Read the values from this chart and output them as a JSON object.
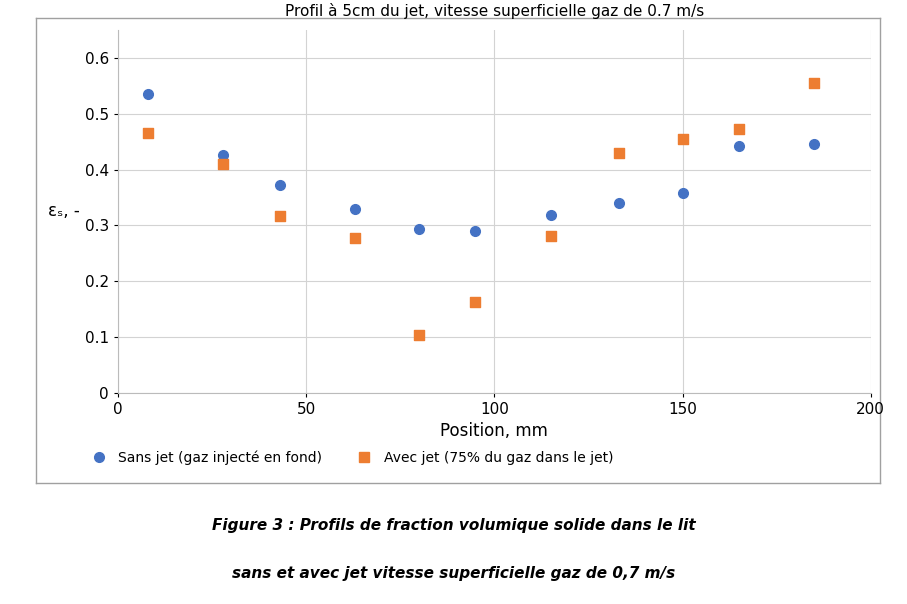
{
  "title": "Profil à 5cm du jet, vitesse superficielle gaz de 0.7 m/s",
  "xlabel": "Position, mm",
  "ylabel": "εₛ, -",
  "xlim": [
    0,
    200
  ],
  "ylim": [
    0,
    0.65
  ],
  "yticks": [
    0,
    0.1,
    0.2,
    0.3,
    0.4,
    0.5,
    0.6
  ],
  "xticks": [
    0,
    50,
    100,
    150,
    200
  ],
  "blue_x": [
    8,
    28,
    43,
    63,
    80,
    95,
    115,
    133,
    150,
    165,
    185
  ],
  "blue_y": [
    0.535,
    0.427,
    0.372,
    0.33,
    0.293,
    0.29,
    0.318,
    0.34,
    0.358,
    0.443,
    0.445
  ],
  "orange_x": [
    8,
    28,
    43,
    63,
    80,
    95,
    115,
    133,
    150,
    165,
    185
  ],
  "orange_y": [
    0.465,
    0.41,
    0.316,
    0.278,
    0.103,
    0.162,
    0.281,
    0.43,
    0.455,
    0.472,
    0.555
  ],
  "blue_color": "#4472c4",
  "orange_color": "#ed7d31",
  "legend_blue": "Sans jet (gaz injecté en fond)",
  "legend_orange": "Avec jet (75% du gaz dans le jet)",
  "caption_line1": "Figure 3 : Profils de fraction volumique solide dans le lit",
  "caption_line2": "sans et avec jet vitesse superficielle gaz de 0,7 m/s",
  "marker_size": 7,
  "grid_color": "#d3d3d3",
  "background_color": "#ffffff",
  "border_color": "#a0a0a0"
}
